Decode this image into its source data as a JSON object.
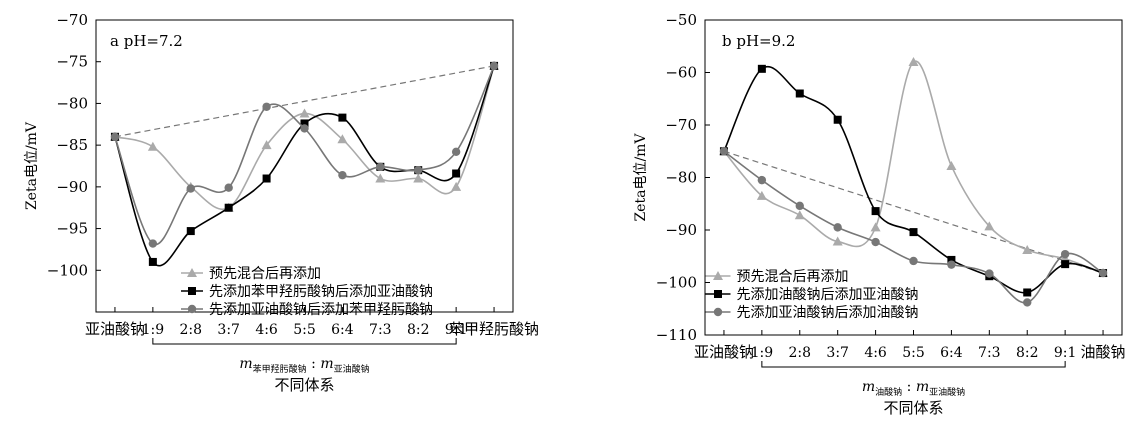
{
  "chart_data": [
    {
      "type": "line",
      "annotation": "a  pH=7.2",
      "ylabel": "Zeta电位/mV",
      "ylim": [
        -105,
        -70
      ],
      "yticks": [
        -70,
        -75,
        -80,
        -85,
        -90,
        -95,
        -100
      ],
      "categories": [
        "亚油酸钠",
        "1:9",
        "2:8",
        "3:7",
        "4:6",
        "5:5",
        "6:4",
        "7:3",
        "8:2",
        "9:1",
        "苯甲羟肟酸钠"
      ],
      "series": [
        {
          "name": "预先混合后再添加",
          "marker": "triangle",
          "color": "#aaaaaa",
          "values": [
            -84.0,
            -85.2,
            -90.0,
            -92.5,
            -85.0,
            -81.2,
            -84.3,
            -89.0,
            -89.0,
            -90.0,
            -75.5
          ]
        },
        {
          "name": "先添加苯甲羟肟酸钠后添加亚油酸钠",
          "marker": "square",
          "color": "#000000",
          "values": [
            -84.0,
            -99.0,
            -95.3,
            -92.5,
            -89.0,
            -82.4,
            -81.7,
            -87.6,
            -88.0,
            -88.4,
            -75.5
          ]
        },
        {
          "name": "先添加亚油酸钠后添加苯甲羟肟酸钠",
          "marker": "circle",
          "color": "#777777",
          "values": [
            -84.0,
            -96.8,
            -90.2,
            -90.1,
            -80.4,
            -83.0,
            -88.6,
            -87.6,
            -88.0,
            -85.8,
            -75.5
          ]
        }
      ],
      "dashed_line": {
        "from": [
          0,
          -84.0
        ],
        "to": [
          10,
          -75.5
        ],
        "color": "#777777"
      },
      "xlabel": {
        "m": "m",
        "numerator": "苯甲羟肟酸钠",
        "colon": ":",
        "m2": "m",
        "denominator": "亚油酸钠"
      },
      "group_label": "不同体系"
    },
    {
      "type": "line",
      "annotation": "b  pH=9.2",
      "ylabel": "Zeta电位/mV",
      "ylim": [
        -110,
        -50
      ],
      "yticks": [
        -50,
        -60,
        -70,
        -80,
        -90,
        -100,
        -110
      ],
      "categories": [
        "亚油酸钠",
        "1:9",
        "2:8",
        "3:7",
        "4:6",
        "5:5",
        "6:4",
        "7:3",
        "8:2",
        "9:1",
        "油酸钠"
      ],
      "series": [
        {
          "name": "预先混合后再添加",
          "marker": "triangle",
          "color": "#aaaaaa",
          "values": [
            -75.0,
            -83.5,
            -87.2,
            -92.2,
            -89.5,
            -58.0,
            -77.8,
            -89.3,
            -93.8,
            -95.5,
            -98.2
          ]
        },
        {
          "name": "先添加油酸钠后添加亚油酸钠",
          "marker": "square",
          "color": "#000000",
          "values": [
            -75.0,
            -59.3,
            -64.0,
            -69.0,
            -86.4,
            -90.4,
            -95.7,
            -98.8,
            -101.9,
            -96.5,
            -98.2
          ]
        },
        {
          "name": "先添加亚油酸钠后添加油酸钠",
          "marker": "circle",
          "color": "#777777",
          "values": [
            -75.0,
            -80.5,
            -85.4,
            -89.5,
            -92.3,
            -95.9,
            -96.6,
            -98.3,
            -103.8,
            -94.6,
            -98.2
          ]
        }
      ],
      "dashed_line": {
        "from": [
          0,
          -75.0
        ],
        "to": [
          10,
          -98.2
        ],
        "color": "#777777"
      },
      "xlabel": {
        "m": "m",
        "numerator": "油酸钠",
        "colon": ":",
        "m2": "m",
        "denominator": "亚油酸钠"
      },
      "group_label": "不同体系"
    }
  ]
}
